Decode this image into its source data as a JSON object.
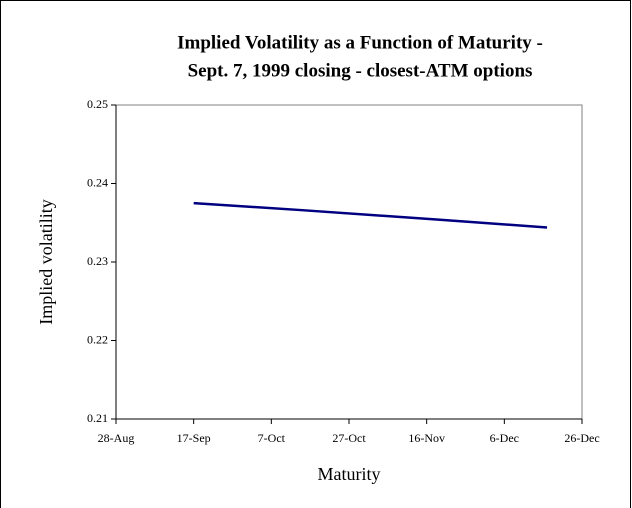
{
  "chart_data": {
    "type": "line",
    "title": "Implied Volatility as a Function of Maturity -",
    "subtitle": "Sept. 7, 1999 closing - closest-ATM options",
    "x_label": "Maturity",
    "y_label": "Implied volatility",
    "x": [
      "1999-09-17",
      "1999-10-15",
      "1999-11-19",
      "1999-12-17"
    ],
    "series": [
      {
        "name": "Implied volatility",
        "color": "#000080",
        "values": [
          0.2375,
          0.2366,
          0.2354,
          0.2344
        ]
      }
    ],
    "xlim": [
      "1999-08-28",
      "1999-12-26"
    ],
    "xticks": [
      {
        "value": "1999-08-28",
        "label": "28-Aug"
      },
      {
        "value": "1999-09-17",
        "label": "17-Sep"
      },
      {
        "value": "1999-10-07",
        "label": "7-Oct"
      },
      {
        "value": "1999-10-27",
        "label": "27-Oct"
      },
      {
        "value": "1999-11-16",
        "label": "16-Nov"
      },
      {
        "value": "1999-12-06",
        "label": "6-Dec"
      },
      {
        "value": "1999-12-26",
        "label": "26-Dec"
      }
    ],
    "ylim": [
      0.21,
      0.25
    ],
    "yticks": [
      0.21,
      0.22,
      0.23,
      0.24,
      0.25
    ],
    "grid": false
  }
}
